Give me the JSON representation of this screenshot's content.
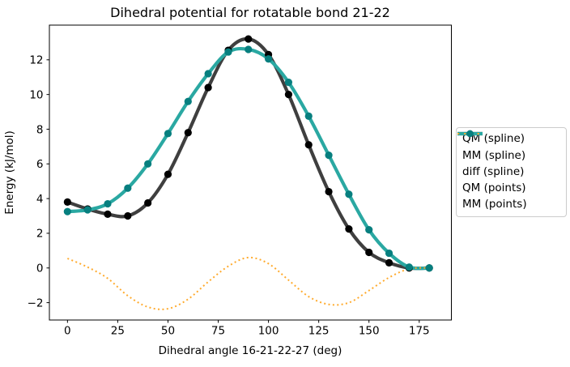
{
  "chart_data": {
    "type": "line",
    "title": "Dihedral potential for rotatable bond 21-22",
    "xlabel": "Dihedral angle 16-21-22-27 (deg)",
    "ylabel": "Energy (kJ/mol)",
    "x": [
      0,
      10,
      20,
      30,
      40,
      50,
      60,
      70,
      80,
      90,
      100,
      110,
      120,
      130,
      140,
      150,
      160,
      170,
      180
    ],
    "series": [
      {
        "name": "QM (spline)",
        "style": "spline",
        "color": "#3f3f3f",
        "linewidth": 4.2,
        "values": [
          3.8,
          3.4,
          3.1,
          3.0,
          3.75,
          5.4,
          7.8,
          10.4,
          12.55,
          13.2,
          12.3,
          10.0,
          7.1,
          4.4,
          2.25,
          0.9,
          0.3,
          0.0,
          0.0
        ]
      },
      {
        "name": "MM (spline)",
        "style": "spline",
        "color": "#2aa8a2",
        "linewidth": 4.2,
        "values": [
          3.25,
          3.35,
          3.7,
          4.6,
          6.0,
          7.75,
          9.6,
          11.2,
          12.45,
          12.6,
          12.05,
          10.7,
          8.75,
          6.5,
          4.25,
          2.2,
          0.85,
          0.05,
          0.0
        ]
      },
      {
        "name": "diff (spline)",
        "style": "spline-dotted",
        "color": "#ffab2e",
        "linewidth": 2,
        "values": [
          0.55,
          0.05,
          -0.6,
          -1.6,
          -2.25,
          -2.35,
          -1.8,
          -0.8,
          0.1,
          0.6,
          0.25,
          -0.7,
          -1.65,
          -2.1,
          -2.0,
          -1.3,
          -0.55,
          -0.05,
          0.0
        ]
      },
      {
        "name": "QM (points)",
        "style": "points",
        "color": "#000000",
        "markersize": 4.6,
        "values": [
          3.8,
          3.4,
          3.1,
          3.0,
          3.75,
          5.4,
          7.8,
          10.4,
          12.55,
          13.2,
          12.3,
          10.0,
          7.1,
          4.4,
          2.25,
          0.9,
          0.3,
          0.0,
          0.0
        ]
      },
      {
        "name": "MM (points)",
        "style": "points",
        "color": "#077f7f",
        "markersize": 4.6,
        "values": [
          3.25,
          3.35,
          3.7,
          4.6,
          6.0,
          7.75,
          9.6,
          11.2,
          12.45,
          12.6,
          12.05,
          10.7,
          8.75,
          6.5,
          4.25,
          2.2,
          0.85,
          0.05,
          0.0
        ]
      }
    ],
    "xlim": [
      -9,
      191
    ],
    "ylim": [
      -3,
      14
    ],
    "xticks": [
      0,
      25,
      50,
      75,
      100,
      125,
      150,
      175
    ],
    "yticks": [
      -2,
      0,
      2,
      4,
      6,
      8,
      10,
      12
    ],
    "grid": false,
    "legend_position": "right",
    "axis_color": "#000000",
    "background_color": "#ffffff"
  }
}
